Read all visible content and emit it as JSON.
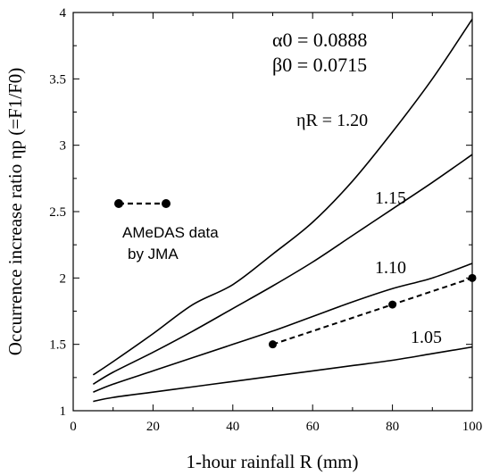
{
  "chart_data": {
    "type": "line",
    "title": "",
    "xlabel": "1-hour rainfall  R (mm)",
    "ylabel": "Occurrence increase ratio  ηp (=F1/F0)",
    "xlim": [
      0,
      100
    ],
    "ylim": [
      1,
      4
    ],
    "xticks": [
      0,
      20,
      40,
      60,
      80,
      100
    ],
    "yticks": [
      1,
      1.5,
      2,
      2.5,
      3,
      3.5,
      4
    ],
    "xtick_labels": [
      "0",
      "20",
      "40",
      "60",
      "80",
      "100"
    ],
    "ytick_labels": [
      "1",
      "1.5",
      "2",
      "2.5",
      "3",
      "3.5",
      "4"
    ],
    "grid": false,
    "parameters": {
      "alpha": "α0 = 0.0888",
      "beta": "β0 = 0.0715"
    },
    "series": [
      {
        "label": "ηR = 1.20",
        "x": [
          5,
          10,
          20,
          30,
          40,
          50,
          60,
          70,
          80,
          90,
          100
        ],
        "y": [
          1.27,
          1.37,
          1.58,
          1.8,
          1.95,
          2.18,
          2.42,
          2.73,
          3.1,
          3.5,
          3.95
        ]
      },
      {
        "label": "1.15",
        "x": [
          5,
          10,
          20,
          30,
          40,
          50,
          60,
          70,
          80,
          90,
          100
        ],
        "y": [
          1.2,
          1.29,
          1.44,
          1.6,
          1.77,
          1.94,
          2.12,
          2.32,
          2.52,
          2.72,
          2.93
        ]
      },
      {
        "label": "1.10",
        "x": [
          5,
          10,
          20,
          30,
          40,
          50,
          60,
          70,
          80,
          90,
          100
        ],
        "y": [
          1.14,
          1.2,
          1.3,
          1.4,
          1.5,
          1.6,
          1.71,
          1.82,
          1.92,
          2.0,
          2.11
        ]
      },
      {
        "label": "1.05",
        "x": [
          5,
          10,
          20,
          30,
          40,
          50,
          60,
          70,
          80,
          90,
          100
        ],
        "y": [
          1.07,
          1.1,
          1.14,
          1.18,
          1.22,
          1.26,
          1.3,
          1.34,
          1.38,
          1.43,
          1.48
        ]
      }
    ],
    "observed": {
      "legend": [
        "AMeDAS data",
        "by JMA"
      ],
      "x": [
        50,
        80,
        100
      ],
      "y": [
        1.5,
        1.8,
        2.0
      ]
    }
  }
}
